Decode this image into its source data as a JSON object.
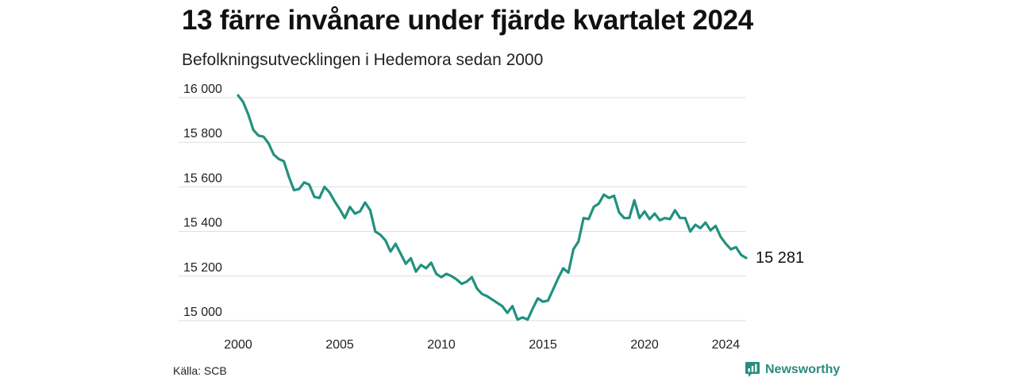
{
  "title": "13 färre invånare under fjärde kvartalet 2024",
  "subtitle": "Befolkningsutvecklingen i Hedemora sedan 2000",
  "source": "Källa: SCB",
  "brand": {
    "name": "Newsworthy",
    "icon": "newsworthy-logo-icon",
    "color": "#2a8c7f"
  },
  "colors": {
    "line": "#22917f",
    "grid": "#dddddd"
  },
  "chart_data": {
    "type": "line",
    "title": "13 färre invånare under fjärde kvartalet 2024",
    "subtitle": "Befolkningsutvecklingen i Hedemora sedan 2000",
    "xlabel": "",
    "ylabel": "",
    "grid": true,
    "xlim": [
      2000,
      2025
    ],
    "ylim": [
      15000,
      16000
    ],
    "x_ticks": [
      2000,
      2005,
      2010,
      2015,
      2020,
      2024
    ],
    "x_tick_labels": [
      "2000",
      "2005",
      "2010",
      "2015",
      "2020",
      "2024"
    ],
    "y_ticks": [
      15000,
      15200,
      15400,
      15600,
      15800,
      16000
    ],
    "y_tick_labels": [
      "15 000",
      "15 200",
      "15 400",
      "15 600",
      "15 800",
      "16 000"
    ],
    "end_label": "15 281",
    "series": [
      {
        "x_start": 2000.0,
        "x_step": 0.25,
        "values": [
          16010,
          15980,
          15925,
          15855,
          15830,
          15825,
          15795,
          15745,
          15725,
          15715,
          15645,
          15585,
          15590,
          15620,
          15610,
          15555,
          15550,
          15600,
          15575,
          15535,
          15500,
          15460,
          15510,
          15480,
          15490,
          15530,
          15495,
          15400,
          15385,
          15360,
          15310,
          15345,
          15300,
          15255,
          15280,
          15220,
          15250,
          15235,
          15260,
          15210,
          15195,
          15210,
          15200,
          15185,
          15165,
          15175,
          15195,
          15145,
          15120,
          15110,
          15095,
          15080,
          15065,
          15035,
          15065,
          15005,
          15015,
          15005,
          15055,
          15100,
          15085,
          15090,
          15140,
          15190,
          15235,
          15215,
          15320,
          15355,
          15460,
          15455,
          15510,
          15525,
          15565,
          15550,
          15560,
          15485,
          15460,
          15460,
          15540,
          15460,
          15490,
          15455,
          15480,
          15450,
          15460,
          15455,
          15495,
          15460,
          15460,
          15400,
          15430,
          15415,
          15440,
          15405,
          15425,
          15375,
          15345,
          15320,
          15330,
          15295,
          15281
        ]
      }
    ]
  }
}
